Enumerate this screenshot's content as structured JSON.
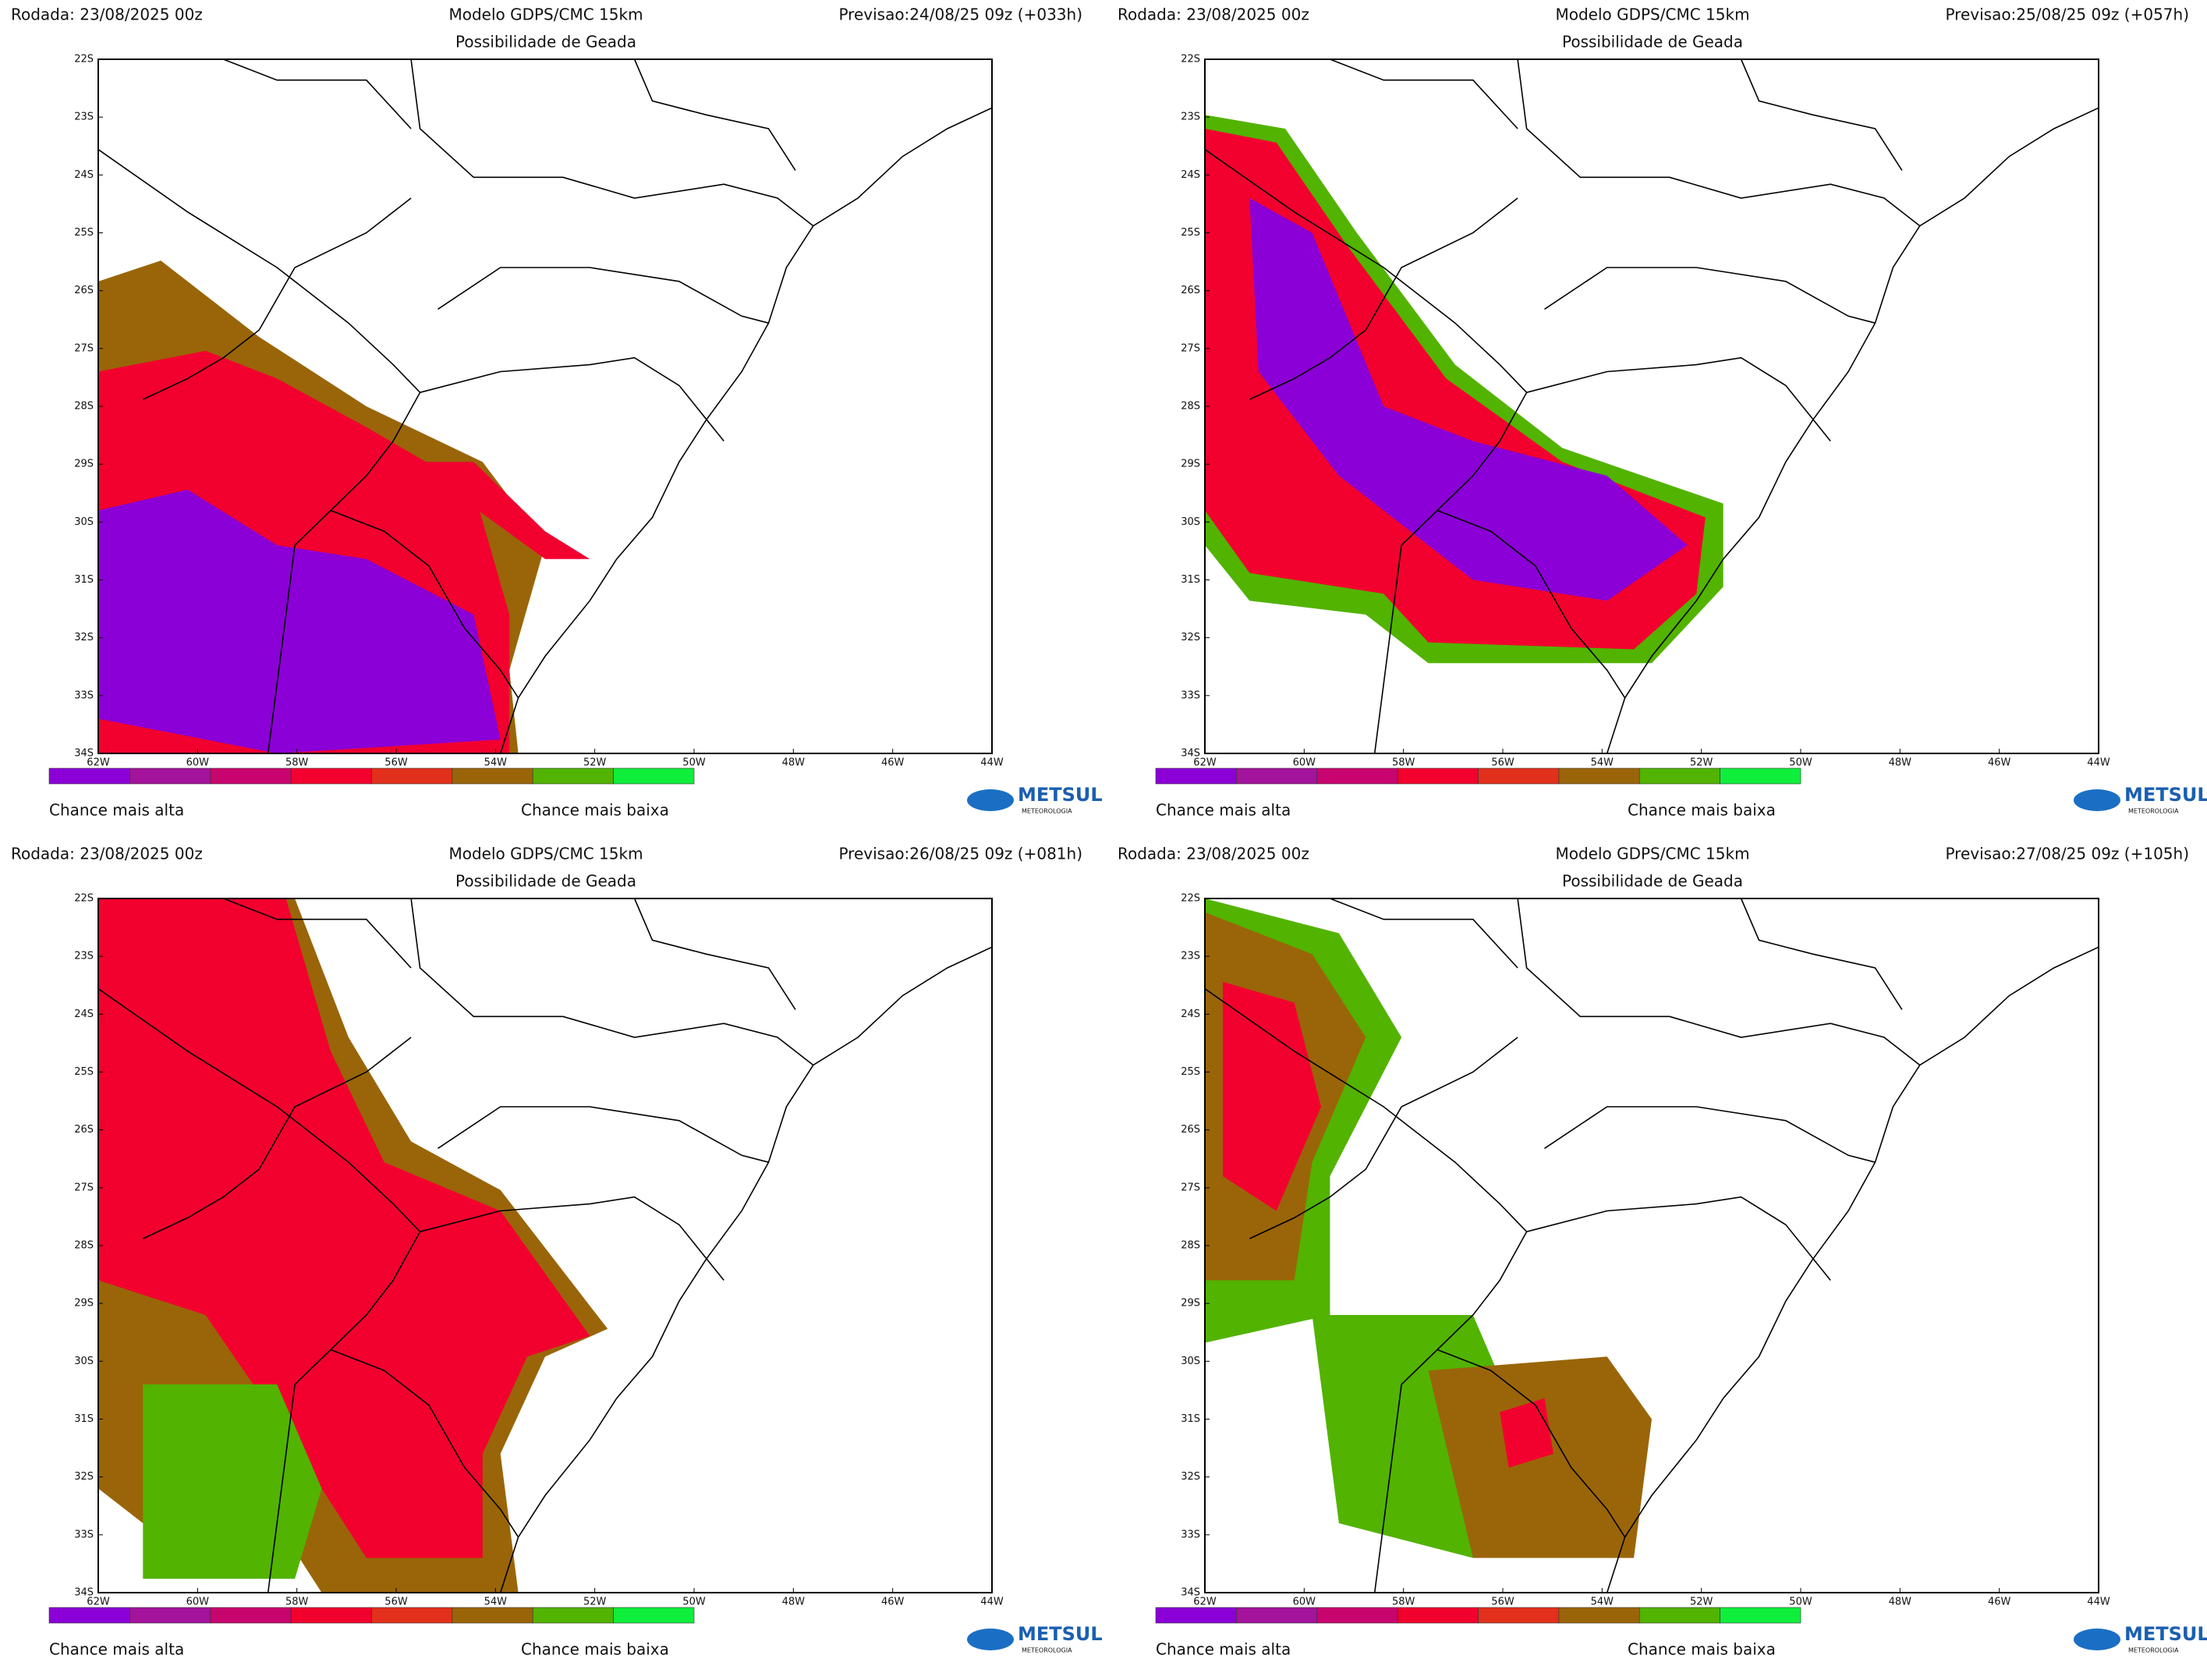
{
  "panels": [
    {
      "run": "Rodada: 23/08/2025 00z",
      "model": "Modelo GDPS/CMC 15km",
      "forecast": "Previsao:24/08/25 09z (+033h)",
      "subtitle": "Possibilidade de Geada"
    },
    {
      "run": "Rodada: 23/08/2025 00z",
      "model": "Modelo GDPS/CMC 15km",
      "forecast": "Previsao:25/08/25 09z (+057h)",
      "subtitle": "Possibilidade de Geada"
    },
    {
      "run": "Rodada: 23/08/2025 00z",
      "model": "Modelo GDPS/CMC 15km",
      "forecast": "Previsao:26/08/25 09z (+081h)",
      "subtitle": "Possibilidade de Geada"
    },
    {
      "run": "Rodada: 23/08/2025 00z",
      "model": "Modelo GDPS/CMC 15km",
      "forecast": "Previsao:27/08/25 09z (+105h)",
      "subtitle": "Possibilidade de Geada"
    }
  ],
  "axes": {
    "lat_labels": [
      "22S",
      "23S",
      "24S",
      "25S",
      "26S",
      "27S",
      "28S",
      "29S",
      "30S",
      "31S",
      "32S",
      "33S",
      "34S"
    ],
    "lon_labels": [
      "62W",
      "60W",
      "58W",
      "56W",
      "54W",
      "52W",
      "50W",
      "48W",
      "46W",
      "44W"
    ]
  },
  "legend": {
    "high": "Chance mais alta",
    "low": "Chance mais baixa",
    "colors": [
      "#8b00d6",
      "#a3139c",
      "#c8046e",
      "#f2002e",
      "#e2301c",
      "#9a6508",
      "#52b300",
      "#10ee3c"
    ]
  },
  "logo": {
    "name": "METSUL",
    "tagline": "METEOROLOGIA"
  }
}
